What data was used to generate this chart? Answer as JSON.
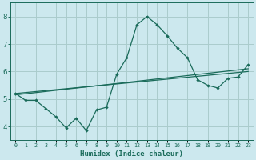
{
  "xlabel": "Humidex (Indice chaleur)",
  "ylabel": "",
  "bg_color": "#cce8ee",
  "grid_color": "#aacccc",
  "line_color": "#1a6b5a",
  "xlim": [
    -0.5,
    23.5
  ],
  "ylim": [
    3.5,
    8.5
  ],
  "yticks": [
    4,
    5,
    6,
    7,
    8
  ],
  "xtick_labels": [
    "0",
    "1",
    "2",
    "3",
    "4",
    "5",
    "6",
    "7",
    "8",
    "9",
    "10",
    "11",
    "12",
    "13",
    "14",
    "15",
    "16",
    "17",
    "18",
    "19",
    "20",
    "21",
    "22",
    "23"
  ],
  "line1_x": [
    0,
    1,
    2,
    3,
    4,
    5,
    6,
    7,
    8,
    9,
    10,
    11,
    12,
    13,
    14,
    15,
    16,
    17,
    18,
    19,
    20,
    21,
    22,
    23
  ],
  "line1_y": [
    5.2,
    4.95,
    4.95,
    4.65,
    4.35,
    3.95,
    4.3,
    3.85,
    4.6,
    4.7,
    5.9,
    6.5,
    7.7,
    8.0,
    7.7,
    7.3,
    6.85,
    6.5,
    5.7,
    5.5,
    5.4,
    5.75,
    5.8,
    6.25
  ],
  "line2_x": [
    0,
    23
  ],
  "line2_y": [
    5.2,
    6.0
  ],
  "line3_x": [
    0,
    23
  ],
  "line3_y": [
    5.15,
    6.1
  ]
}
